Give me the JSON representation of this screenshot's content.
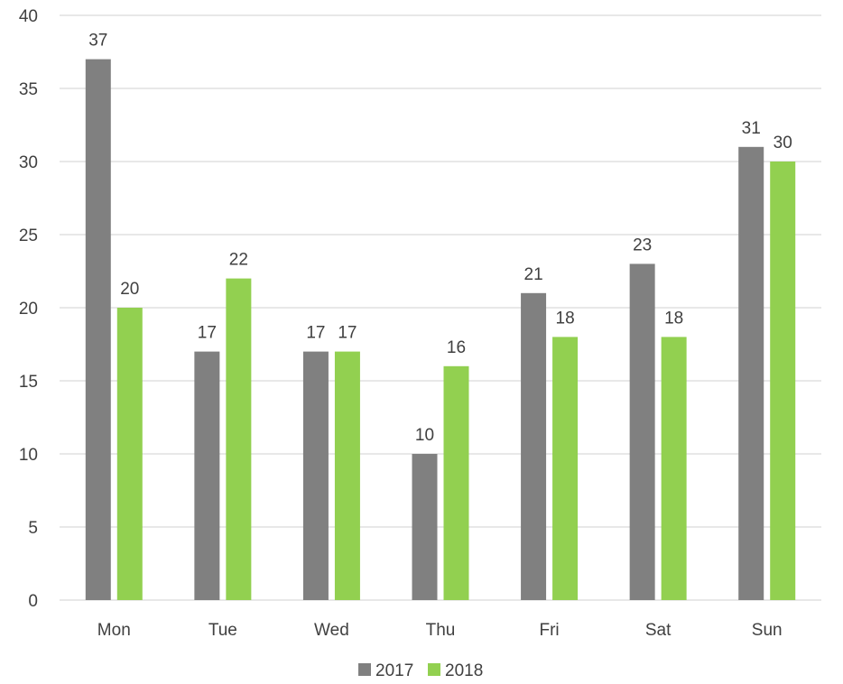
{
  "chart_data": {
    "type": "bar",
    "title": "",
    "xlabel": "",
    "ylabel": "",
    "categories": [
      "Mon",
      "Tue",
      "Wed",
      "Thu",
      "Fri",
      "Sat",
      "Sun"
    ],
    "series": [
      {
        "name": "2017",
        "color": "#808080",
        "values": [
          37,
          17,
          17,
          10,
          21,
          23,
          31
        ]
      },
      {
        "name": "2018",
        "color": "#92D050",
        "values": [
          20,
          22,
          17,
          16,
          18,
          18,
          30
        ]
      }
    ],
    "ylim": [
      0,
      40
    ],
    "yticks": [
      0,
      5,
      10,
      15,
      20,
      25,
      30,
      35,
      40
    ],
    "grid": true,
    "gridColor": "#d9d9d9",
    "legend": "bottom-center",
    "dataLabels": true
  }
}
